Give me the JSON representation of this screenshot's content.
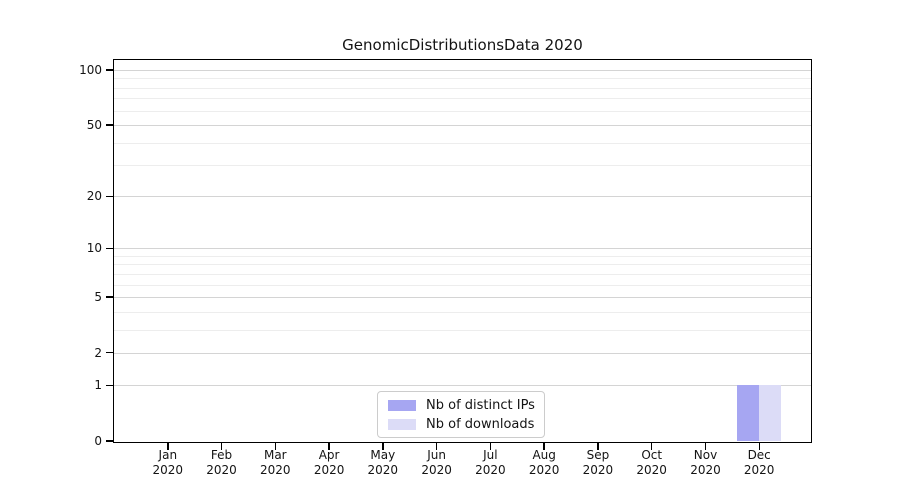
{
  "chart_data": {
    "type": "bar",
    "title": "GenomicDistributionsData 2020",
    "categories": [
      {
        "month": "Jan",
        "year": "2020"
      },
      {
        "month": "Feb",
        "year": "2020"
      },
      {
        "month": "Mar",
        "year": "2020"
      },
      {
        "month": "Apr",
        "year": "2020"
      },
      {
        "month": "May",
        "year": "2020"
      },
      {
        "month": "Jun",
        "year": "2020"
      },
      {
        "month": "Jul",
        "year": "2020"
      },
      {
        "month": "Aug",
        "year": "2020"
      },
      {
        "month": "Sep",
        "year": "2020"
      },
      {
        "month": "Oct",
        "year": "2020"
      },
      {
        "month": "Nov",
        "year": "2020"
      },
      {
        "month": "Dec",
        "year": "2020"
      }
    ],
    "series": [
      {
        "name": "Nb of distinct IPs",
        "color": "#a6a6f2",
        "values": [
          0,
          0,
          0,
          0,
          0,
          0,
          0,
          0,
          0,
          0,
          0,
          1
        ]
      },
      {
        "name": "Nb of downloads",
        "color": "#dcdcf7",
        "values": [
          0,
          0,
          0,
          0,
          0,
          0,
          0,
          0,
          0,
          0,
          0,
          1
        ]
      }
    ],
    "yscale": "log1p",
    "ylim": [
      0,
      100
    ],
    "y_major_ticks": [
      0,
      1,
      2,
      5,
      10,
      20,
      50,
      100
    ],
    "y_minor_ticks": [
      3,
      4,
      6,
      7,
      8,
      9,
      30,
      40,
      60,
      70,
      80,
      90
    ],
    "xlabel": "",
    "ylabel": "",
    "grid": "both",
    "legend_position": "lower center",
    "colors": {
      "grid_major": "#d4d4d4",
      "grid_minor": "#ededed",
      "axis": "#000000",
      "background": "#ffffff"
    }
  }
}
